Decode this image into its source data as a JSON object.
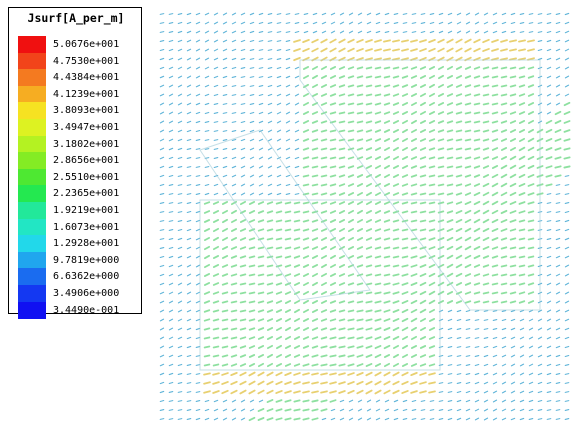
{
  "legend": {
    "title": "Jsurf[A_per_m]",
    "entries": [
      {
        "label": "5.0676e+001",
        "color": "#f01010"
      },
      {
        "label": "4.7530e+001",
        "color": "#f2441a"
      },
      {
        "label": "4.4384e+001",
        "color": "#f47a20"
      },
      {
        "label": "4.1239e+001",
        "color": "#f6ad22"
      },
      {
        "label": "3.8093e+001",
        "color": "#f6e222"
      },
      {
        "label": "3.4947e+001",
        "color": "#ddf222"
      },
      {
        "label": "3.1802e+001",
        "color": "#b4f222"
      },
      {
        "label": "2.8656e+001",
        "color": "#84ec24"
      },
      {
        "label": "2.5510e+001",
        "color": "#4ee832"
      },
      {
        "label": "2.2365e+001",
        "color": "#24e850"
      },
      {
        "label": "1.9219e+001",
        "color": "#22e89a"
      },
      {
        "label": "1.6073e+001",
        "color": "#22e6c4"
      },
      {
        "label": "1.2928e+001",
        "color": "#22d8ea"
      },
      {
        "label": "9.7819e+000",
        "color": "#20a6ee"
      },
      {
        "label": "6.6362e+000",
        "color": "#1a6cf0"
      },
      {
        "label": "3.4906e+000",
        "color": "#1438f2"
      },
      {
        "label": "3.4490e-001",
        "color": "#1010f2"
      }
    ]
  },
  "plot": {
    "quantity": "Jsurf",
    "arrow_color_default": "#5fb4d8",
    "arrow_color_strong": "#8ee0a0",
    "arrow_color_peak": "#e8d070"
  }
}
